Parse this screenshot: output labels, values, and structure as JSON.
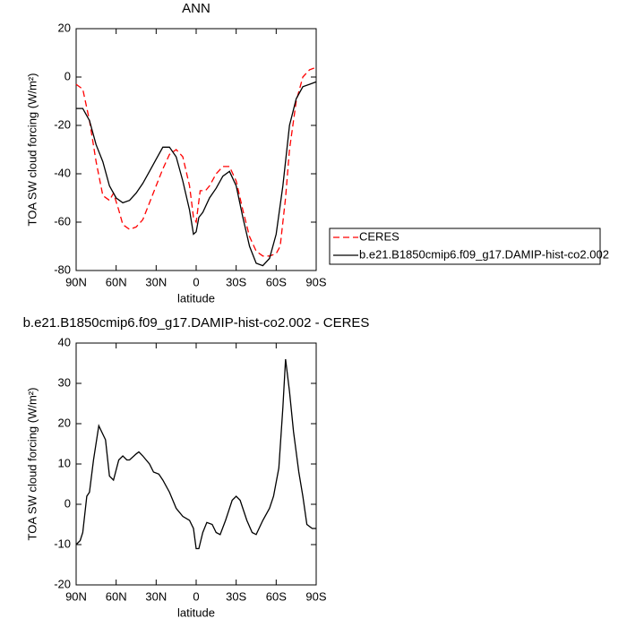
{
  "chart_data": [
    {
      "type": "line",
      "title": "ANN",
      "x_label": "latitude",
      "y_label": "TOA SW cloud forcing (W/m²)",
      "xlim": [
        90,
        -90
      ],
      "xticks": [
        {
          "value": 90,
          "label": "90N"
        },
        {
          "value": 60,
          "label": "60N"
        },
        {
          "value": 30,
          "label": "30N"
        },
        0,
        {
          "value": -30,
          "label": "30S"
        },
        {
          "value": -60,
          "label": "60S"
        },
        {
          "value": -90,
          "label": "90S"
        }
      ],
      "ylim": [
        -80,
        20
      ],
      "yticks": [
        -80,
        -60,
        -40,
        -20,
        0,
        20
      ],
      "legend": "right",
      "series": [
        {
          "name": "CERES",
          "color": "#ff0000",
          "style": "dashed",
          "x": [
            90,
            85,
            80,
            75,
            70,
            65,
            62,
            58,
            55,
            50,
            45,
            40,
            35,
            30,
            25,
            20,
            15,
            10,
            5,
            2,
            0,
            -3,
            -7,
            -10,
            -15,
            -20,
            -25,
            -30,
            -35,
            -40,
            -45,
            -50,
            -55,
            -60,
            -63,
            -67,
            -70,
            -75,
            -80,
            -85,
            -90
          ],
          "values": [
            -3,
            -5,
            -18,
            -35,
            -49,
            -51,
            -48,
            -55,
            -61,
            -63,
            -62,
            -59,
            -52,
            -45,
            -38,
            -32,
            -30,
            -33,
            -45,
            -58,
            -60,
            -47,
            -47,
            -45,
            -40,
            -37,
            -37,
            -43,
            -55,
            -66,
            -72,
            -74,
            -74,
            -73,
            -70,
            -50,
            -30,
            -10,
            0,
            3,
            4
          ]
        },
        {
          "name": "b.e21.B1850cmip6.f09_g17.DAMIP-hist-co2.002",
          "color": "#000000",
          "style": "solid",
          "x": [
            90,
            85,
            80,
            75,
            70,
            65,
            60,
            55,
            50,
            45,
            40,
            35,
            30,
            25,
            20,
            15,
            10,
            5,
            2,
            0,
            -2,
            -5,
            -10,
            -15,
            -20,
            -25,
            -30,
            -35,
            -40,
            -45,
            -50,
            -55,
            -60,
            -65,
            -70,
            -75,
            -80,
            -85,
            -90
          ],
          "values": [
            -13,
            -13,
            -18,
            -28,
            -35,
            -45,
            -50,
            -52,
            -51,
            -48,
            -44,
            -39,
            -34,
            -29,
            -29,
            -33,
            -43,
            -55,
            -65,
            -64,
            -58,
            -56,
            -50,
            -46,
            -41,
            -39,
            -45,
            -58,
            -70,
            -77,
            -78,
            -75,
            -65,
            -45,
            -20,
            -9,
            -4,
            -3,
            -2
          ]
        }
      ]
    },
    {
      "type": "line",
      "title": "b.e21.B1850cmip6.f09_g17.DAMIP-hist-co2.002 - CERES",
      "x_label": "latitude",
      "y_label": "TOA SW cloud forcing (W/m²)",
      "xlim": [
        90,
        -90
      ],
      "xticks": [
        {
          "value": 90,
          "label": "90N"
        },
        {
          "value": 60,
          "label": "60N"
        },
        {
          "value": 30,
          "label": "30N"
        },
        0,
        {
          "value": -30,
          "label": "30S"
        },
        {
          "value": -60,
          "label": "60S"
        },
        {
          "value": -90,
          "label": "90S"
        }
      ],
      "ylim": [
        -20,
        40
      ],
      "yticks": [
        -20,
        -10,
        0,
        10,
        20,
        30,
        40
      ],
      "series": [
        {
          "color": "#000000",
          "style": "solid",
          "x": [
            90,
            87,
            85,
            82,
            80,
            77,
            73,
            68,
            65,
            62,
            58,
            55,
            52,
            50,
            45,
            43,
            40,
            35,
            32,
            28,
            25,
            20,
            15,
            10,
            5,
            2,
            0,
            -2,
            -5,
            -8,
            -12,
            -15,
            -18,
            -22,
            -27,
            -30,
            -33,
            -38,
            -42,
            -45,
            -50,
            -55,
            -58,
            -62,
            -65,
            -67,
            -70,
            -73,
            -77,
            -80,
            -83,
            -87,
            -90
          ],
          "values": [
            -10,
            -9,
            -7,
            2,
            3,
            11,
            19.5,
            16,
            7,
            6,
            11,
            12,
            11,
            11,
            12.5,
            13,
            12,
            10,
            8,
            7.5,
            6,
            3,
            -1,
            -3,
            -4,
            -6,
            -11,
            -11,
            -7,
            -4.5,
            -5,
            -7,
            -7.5,
            -4,
            1,
            2,
            1,
            -4,
            -7,
            -7.5,
            -4,
            -1,
            2,
            9,
            24,
            36,
            28,
            18,
            8,
            2,
            -5,
            -6,
            -6
          ]
        }
      ]
    }
  ]
}
